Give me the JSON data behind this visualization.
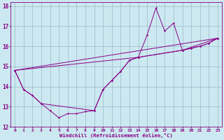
{
  "xlabel": "Windchill (Refroidissement éolien,°C)",
  "bg_color": "#cce8f0",
  "line_color": "#880088",
  "grid_color": "#99bbcc",
  "xlim": [
    -0.5,
    23.5
  ],
  "ylim": [
    12,
    18.2
  ],
  "yticks": [
    12,
    13,
    14,
    15,
    16,
    17,
    18
  ],
  "xticks": [
    0,
    1,
    2,
    3,
    4,
    5,
    6,
    7,
    8,
    9,
    10,
    11,
    12,
    13,
    14,
    15,
    16,
    17,
    18,
    19,
    20,
    21,
    22,
    23
  ],
  "line1_x": [
    0,
    1,
    2,
    3,
    4,
    5,
    6,
    7,
    8,
    9,
    10,
    11,
    12,
    13,
    14,
    15,
    16,
    17,
    18,
    19,
    20,
    21,
    22,
    23
  ],
  "line1_y": [
    14.8,
    13.85,
    13.55,
    13.15,
    12.8,
    12.45,
    12.65,
    12.65,
    12.75,
    12.8,
    13.85,
    14.3,
    14.75,
    15.3,
    15.45,
    16.55,
    17.9,
    16.75,
    17.15,
    15.8,
    15.9,
    16.0,
    16.15,
    16.4
  ],
  "line2_x": [
    0,
    1,
    2,
    3,
    9,
    10,
    11,
    12,
    13,
    14,
    19,
    20,
    21,
    22,
    23
  ],
  "line2_y": [
    14.8,
    13.85,
    13.55,
    13.15,
    12.8,
    13.85,
    14.3,
    14.75,
    15.3,
    15.45,
    15.8,
    15.9,
    16.0,
    16.15,
    16.4
  ],
  "line3_x": [
    0,
    23
  ],
  "line3_y": [
    14.8,
    16.4
  ],
  "line4_x": [
    0,
    14,
    19,
    23
  ],
  "line4_y": [
    14.8,
    15.45,
    15.8,
    16.4
  ]
}
